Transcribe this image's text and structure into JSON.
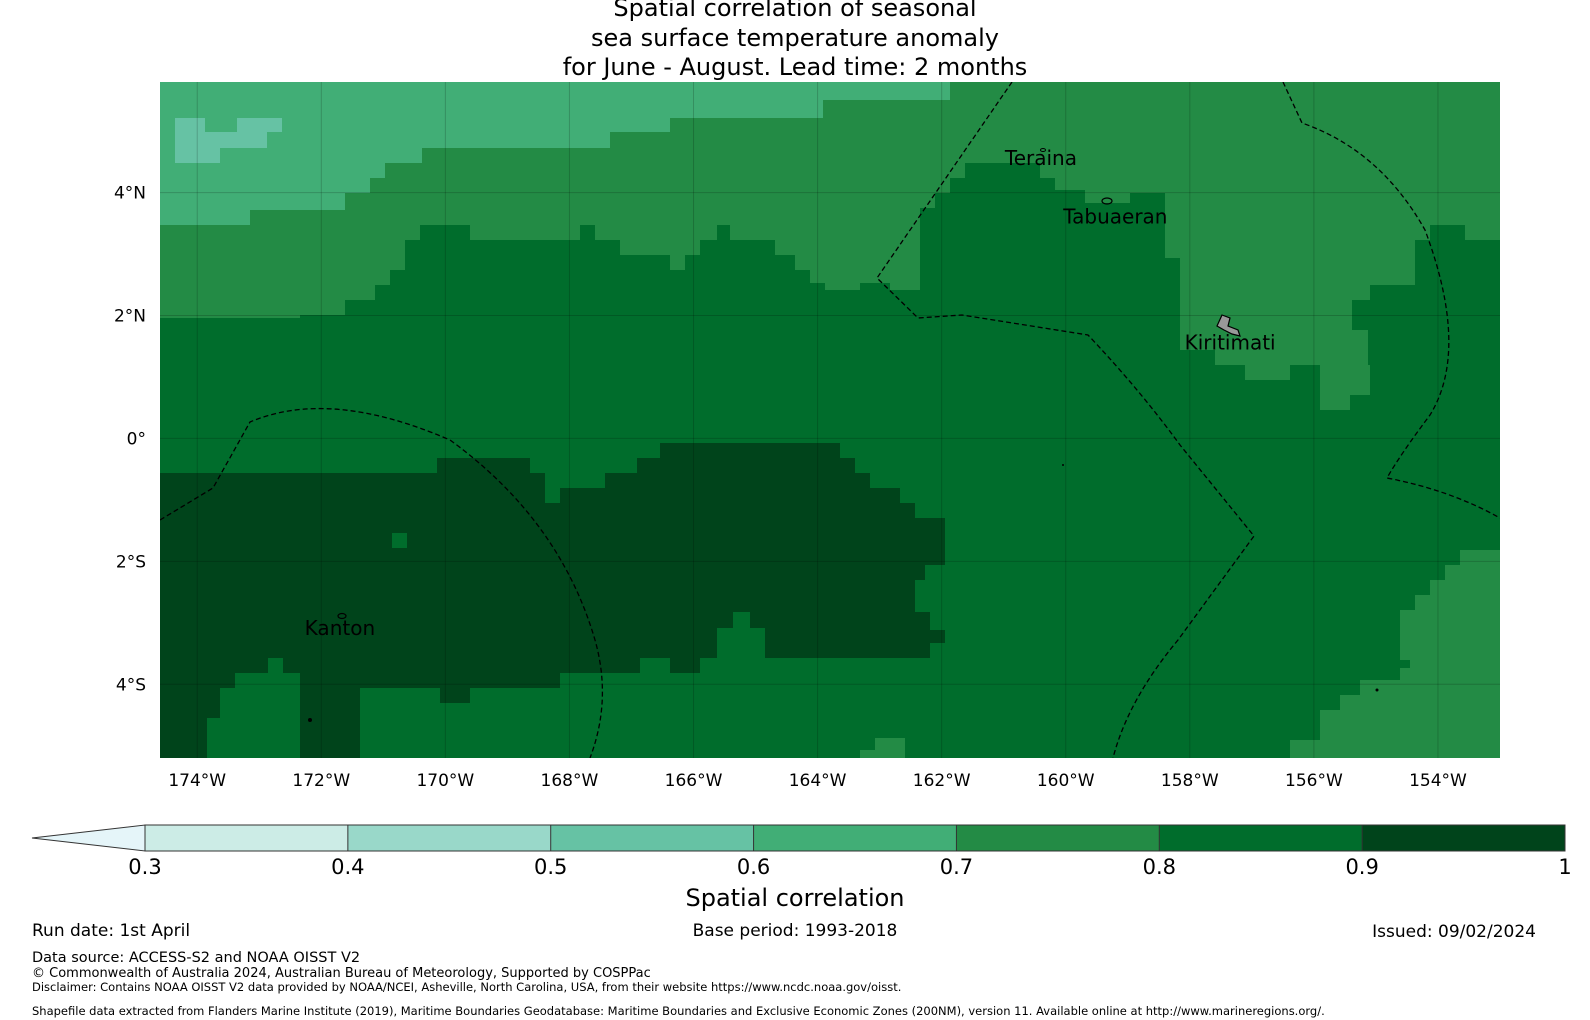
{
  "title_lines": [
    "Spatial correlation of seasonal",
    "sea surface temperature anomaly",
    "for June - August. Lead time: 2 months"
  ],
  "map": {
    "lon_range": [
      -174.6,
      -153.0
    ],
    "lat_range": [
      -5.2,
      5.8
    ],
    "x_ticks": [
      {
        "lon": -174,
        "label": "174°W"
      },
      {
        "lon": -172,
        "label": "172°W"
      },
      {
        "lon": -170,
        "label": "170°W"
      },
      {
        "lon": -168,
        "label": "168°W"
      },
      {
        "lon": -166,
        "label": "166°W"
      },
      {
        "lon": -164,
        "label": "164°W"
      },
      {
        "lon": -162,
        "label": "162°W"
      },
      {
        "lon": -160,
        "label": "160°W"
      },
      {
        "lon": -158,
        "label": "158°W"
      },
      {
        "lon": -156,
        "label": "156°W"
      },
      {
        "lon": -154,
        "label": "154°W"
      }
    ],
    "y_ticks": [
      {
        "lat": 4,
        "label": "4°N"
      },
      {
        "lat": 2,
        "label": "2°N"
      },
      {
        "lat": 0,
        "label": "0°"
      },
      {
        "lat": -2,
        "label": "2°S"
      },
      {
        "lat": -4,
        "label": "4°S"
      }
    ],
    "places": [
      {
        "name": "Teraina",
        "lon": -160.4,
        "lat": 4.45
      },
      {
        "name": "Tabuaeran",
        "lon": -159.2,
        "lat": 3.5
      },
      {
        "name": "Kiritimati",
        "lon": -157.35,
        "lat": 1.45
      },
      {
        "name": "Kanton",
        "lon": -171.7,
        "lat": -3.2
      }
    ]
  },
  "colorbar": {
    "label": "Spatial correlation",
    "levels": [
      0.3,
      0.4,
      0.5,
      0.6,
      0.7,
      0.8,
      0.9,
      1.0
    ],
    "tick_labels": [
      "0.3",
      "0.4",
      "0.5",
      "0.6",
      "0.7",
      "0.8",
      "0.9",
      "1"
    ],
    "under_color": "#e5f5f9",
    "colors": [
      "#ccece6",
      "#99d8c9",
      "#66c2a4",
      "#41ae76",
      "#238b45",
      "#006d2c",
      "#00441b"
    ]
  },
  "footer": {
    "run_date": "Run date: 1st April",
    "base_period": "Base period: 1993-2018",
    "issued": "Issued: 09/02/2024",
    "data_source": "Data source: ACCESS-S2 and NOAA OISST V2",
    "copyright": "© Commonwealth of Australia 2024, Australian Bureau of Meteorology, Supported by COSPPac",
    "disclaimer": "Disclaimer: Contains NOAA OISST V2 data provided by NOAA/NCEI, Asheville, North Carolina, USA, from their website https://www.ncdc.noaa.gov/oisst.",
    "shapefile": "Shapefile data extracted from Flanders Marine Institute (2019), Maritime Boundaries Geodatabase: Maritime Boundaries and Exclusive Economic Zones (200NM), version 11. Available online at http://www.marineregions.org/."
  }
}
